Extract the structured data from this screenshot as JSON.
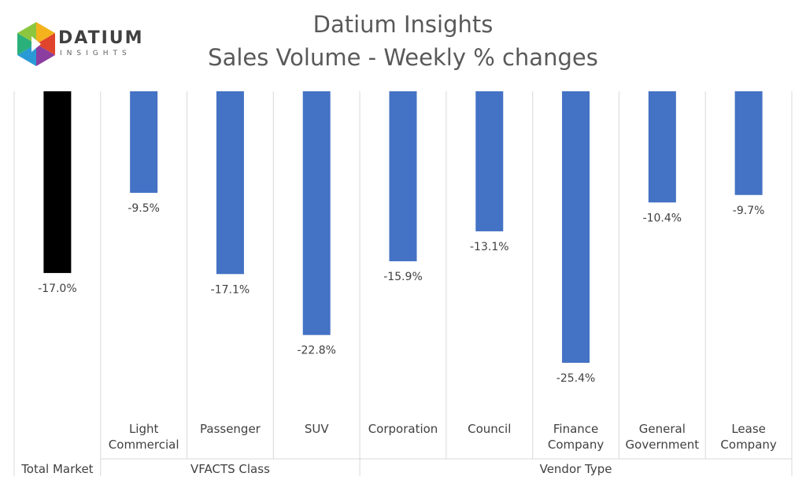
{
  "logo": {
    "word": "DATIUM",
    "sub": "INSIGHTS"
  },
  "title_line1": "Datium Insights",
  "title_line2": "Sales Volume - Weekly % changes",
  "colors": {
    "total": "#000000",
    "series": "#4472C4",
    "grid": "#d9d9d9"
  },
  "chart_data": {
    "type": "bar",
    "title": "Datium Insights Sales Volume - Weekly % changes",
    "categories": [
      "Total Market",
      "Light Commercial",
      "Passenger",
      "SUV",
      "Corporation",
      "Council",
      "Finance Company",
      "General Government",
      "Lease Company"
    ],
    "category_lines": [
      [],
      [
        "Light",
        "Commercial"
      ],
      [
        "Passenger"
      ],
      [
        "SUV"
      ],
      [
        "Corporation"
      ],
      [
        "Council"
      ],
      [
        "Finance",
        "Company"
      ],
      [
        "General",
        "Government"
      ],
      [
        "Lease",
        "Company"
      ]
    ],
    "values": [
      -17.0,
      -9.5,
      -17.1,
      -22.8,
      -15.9,
      -13.1,
      -25.4,
      -10.4,
      -9.7
    ],
    "data_labels": [
      "-17.0%",
      "-9.5%",
      "-17.1%",
      "-22.8%",
      "-15.9%",
      "-13.1%",
      "-25.4%",
      "-10.4%",
      "-9.7%"
    ],
    "groups": [
      {
        "label": "Total Market",
        "start": 0,
        "end": 0
      },
      {
        "label": "VFACTS Class",
        "start": 1,
        "end": 3
      },
      {
        "label": "Vendor Type",
        "start": 4,
        "end": 8
      }
    ],
    "ylim": [
      -25.4,
      0
    ],
    "grid": true,
    "legend": "none"
  }
}
